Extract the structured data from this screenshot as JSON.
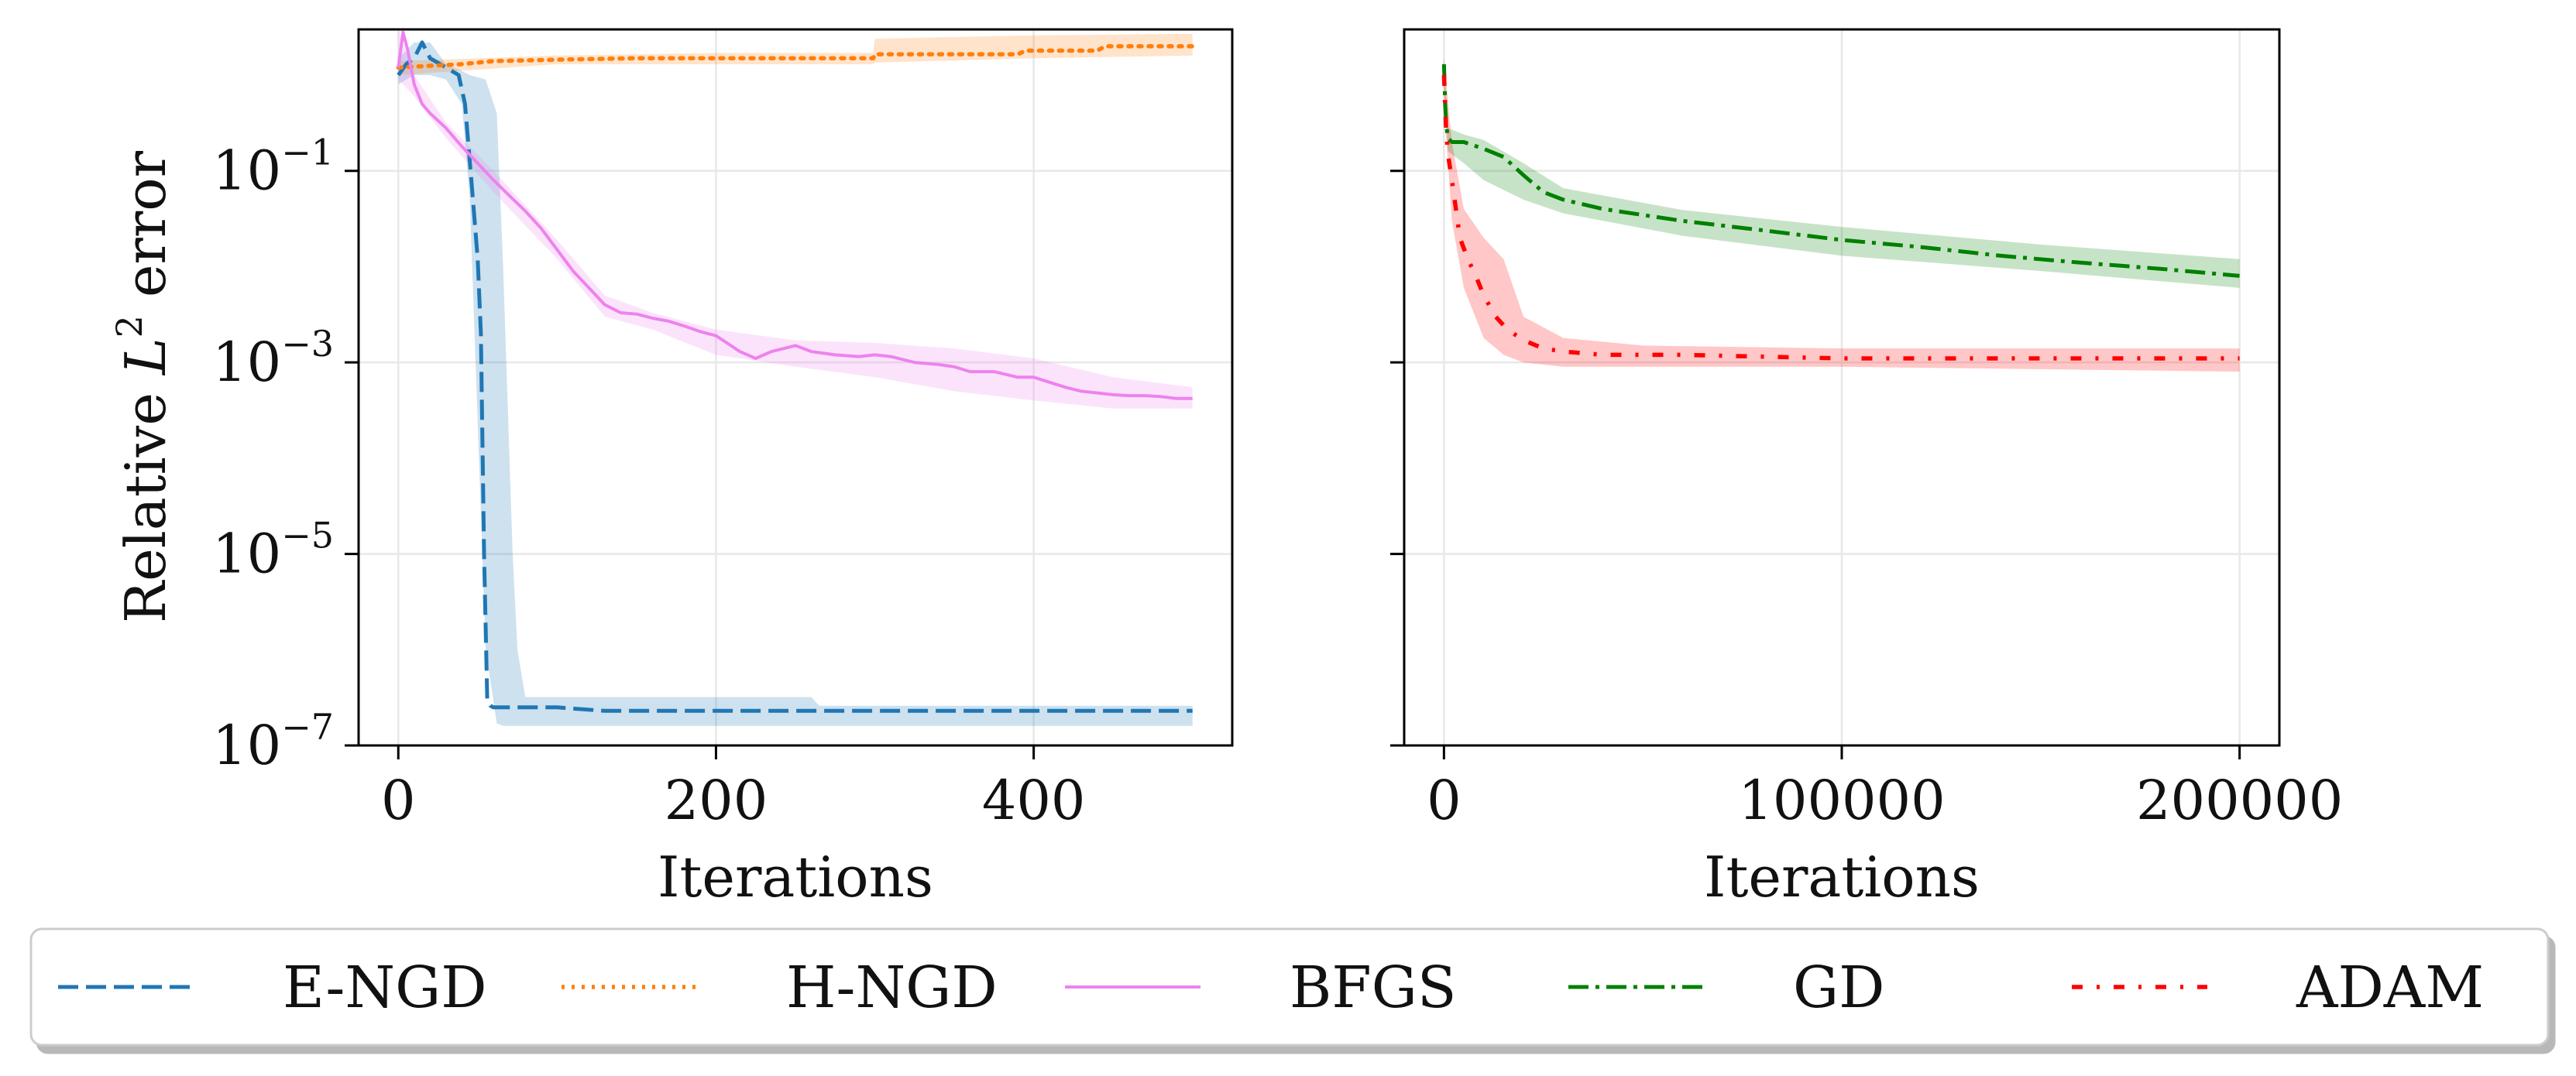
{
  "chart_data": [
    {
      "type": "line",
      "panel": "left",
      "title": "",
      "xlabel": "Iterations",
      "ylabel": "Relative L² error",
      "ylabel_parts": {
        "prefix": "Relative ",
        "var": "L",
        "sup": "2",
        "suffix": " error"
      },
      "yscale": "log",
      "xlim": [
        -25,
        525
      ],
      "ylim": [
        1e-07,
        3
      ],
      "grid": true,
      "xticks": [
        0,
        200,
        400
      ],
      "xtick_labels": [
        "0",
        "200",
        "400"
      ],
      "yticks": [
        1e-07,
        1e-05,
        0.001,
        0.1
      ],
      "ytick_labels": [
        {
          "base": "10",
          "exp": "−7"
        },
        {
          "base": "10",
          "exp": "−5"
        },
        {
          "base": "10",
          "exp": "−3"
        },
        {
          "base": "10",
          "exp": "−1"
        }
      ],
      "series": [
        {
          "name": "E-NGD",
          "color": "#1f77b4",
          "style": "dashed",
          "x": [
            0,
            5,
            10,
            15,
            20,
            30,
            38,
            42,
            46,
            50,
            52,
            54,
            56,
            58,
            60,
            80,
            100,
            130,
            200,
            300,
            400,
            500
          ],
          "y": [
            1.0,
            1.3,
            1.5,
            2.2,
            1.5,
            1.2,
            1.0,
            0.5,
            0.08,
            0.012,
            0.002,
            1e-05,
            3e-07,
            2.6e-07,
            2.5e-07,
            2.5e-07,
            2.5e-07,
            2.3e-07,
            2.3e-07,
            2.3e-07,
            2.3e-07,
            2.3e-07
          ],
          "band_x": [
            0,
            10,
            20,
            30,
            40,
            45,
            55,
            62,
            66,
            70,
            72,
            75,
            80,
            100,
            130,
            200,
            260,
            265,
            300,
            400,
            500
          ],
          "band_lo": [
            0.8,
            1.0,
            1.0,
            0.9,
            0.5,
            0.05,
            1e-06,
            1.7e-07,
            1.6e-07,
            1.6e-07,
            1.6e-07,
            1.6e-07,
            1.6e-07,
            1.6e-07,
            1.6e-07,
            1.6e-07,
            1.6e-07,
            1.6e-07,
            1.6e-07,
            1.6e-07,
            1.6e-07
          ],
          "band_hi": [
            1.5,
            2.2,
            2.2,
            1.3,
            1.1,
            1.0,
            0.9,
            0.4,
            0.01,
            0.0001,
            1e-05,
            1e-06,
            3.2e-07,
            3.2e-07,
            3.2e-07,
            3.2e-07,
            3.2e-07,
            2.6e-07,
            2.6e-07,
            2.6e-07,
            2.6e-07
          ]
        },
        {
          "name": "H-NGD",
          "color": "#ff7f0e",
          "style": "dotted",
          "x": [
            0,
            20,
            40,
            60,
            100,
            150,
            200,
            250,
            299,
            300,
            350,
            390,
            395,
            440,
            445,
            500
          ],
          "y": [
            1.2,
            1.25,
            1.3,
            1.4,
            1.45,
            1.5,
            1.5,
            1.5,
            1.5,
            1.65,
            1.65,
            1.65,
            1.8,
            1.8,
            2.0,
            2.0
          ],
          "band_x": [
            0,
            100,
            200,
            299,
            300,
            400,
            500
          ],
          "band_lo": [
            1.0,
            1.3,
            1.3,
            1.3,
            1.35,
            1.5,
            1.6
          ],
          "band_hi": [
            1.4,
            1.6,
            1.7,
            1.7,
            2.4,
            2.6,
            2.7
          ]
        },
        {
          "name": "BFGS",
          "color": "#ee82ee",
          "style": "solid",
          "x": [
            0,
            3,
            6,
            10,
            15,
            20,
            30,
            40,
            50,
            60,
            70,
            80,
            90,
            100,
            110,
            120,
            130,
            140,
            150,
            160,
            170,
            180,
            190,
            200,
            215,
            225,
            235,
            250,
            260,
            275,
            290,
            300,
            310,
            325,
            340,
            350,
            360,
            375,
            390,
            400,
            410,
            420,
            430,
            440,
            450,
            460,
            470,
            480,
            490,
            500
          ],
          "y": [
            1.2,
            2.8,
            1.8,
            0.8,
            0.5,
            0.4,
            0.28,
            0.18,
            0.12,
            0.08,
            0.055,
            0.038,
            0.025,
            0.015,
            0.009,
            0.006,
            0.004,
            0.0033,
            0.0032,
            0.0029,
            0.0027,
            0.0024,
            0.0021,
            0.0019,
            0.0013,
            0.0011,
            0.0013,
            0.0015,
            0.0013,
            0.0012,
            0.00115,
            0.0012,
            0.00115,
            0.001,
            0.00095,
            0.0009,
            0.0008,
            0.0008,
            0.0007,
            0.0007,
            0.00062,
            0.00055,
            0.0005,
            0.00048,
            0.00046,
            0.00045,
            0.00045,
            0.00044,
            0.00042,
            0.00042
          ],
          "band_x": [
            0,
            10,
            30,
            60,
            100,
            130,
            160,
            200,
            250,
            300,
            350,
            400,
            450,
            500
          ],
          "band_lo": [
            0.9,
            0.6,
            0.22,
            0.06,
            0.012,
            0.003,
            0.0022,
            0.0012,
            0.0009,
            0.0007,
            0.0005,
            0.0004,
            0.00033,
            0.00033
          ],
          "band_hi": [
            3.0,
            1.0,
            0.32,
            0.1,
            0.019,
            0.005,
            0.0033,
            0.0022,
            0.0017,
            0.0016,
            0.0014,
            0.0011,
            0.0007,
            0.00055
          ]
        }
      ]
    },
    {
      "type": "line",
      "panel": "right",
      "title": "",
      "xlabel": "Iterations",
      "ylabel": "",
      "yscale": "log",
      "xlim": [
        -10000,
        210000
      ],
      "ylim": [
        1e-07,
        3
      ],
      "grid": true,
      "xticks": [
        0,
        100000,
        200000
      ],
      "xtick_labels": [
        "0",
        "100000",
        "200000"
      ],
      "yticks": [
        1e-07,
        1e-05,
        0.001,
        0.1
      ],
      "series": [
        {
          "name": "GD",
          "color": "#008000",
          "style": "dashdot",
          "x": [
            0,
            300,
            600,
            1000,
            2000,
            5000,
            10000,
            15000,
            20000,
            25000,
            30000,
            40000,
            60000,
            80000,
            100000,
            120000,
            140000,
            160000,
            180000,
            200000
          ],
          "y": [
            1.3,
            0.5,
            0.3,
            0.22,
            0.2,
            0.2,
            0.17,
            0.14,
            0.09,
            0.06,
            0.05,
            0.04,
            0.03,
            0.024,
            0.019,
            0.016,
            0.013,
            0.011,
            0.0095,
            0.008
          ],
          "band_x": [
            0,
            1000,
            5000,
            10000,
            20000,
            30000,
            60000,
            100000,
            150000,
            200000
          ],
          "band_lo": [
            0.8,
            0.16,
            0.12,
            0.08,
            0.05,
            0.036,
            0.021,
            0.013,
            0.009,
            0.006
          ],
          "band_hi": [
            1.6,
            0.28,
            0.24,
            0.21,
            0.12,
            0.066,
            0.039,
            0.026,
            0.017,
            0.012
          ]
        },
        {
          "name": "ADAM",
          "color": "#ff0000",
          "style": "loosely-dashdotted",
          "x": [
            0,
            500,
            1000,
            2000,
            3000,
            4000,
            6000,
            8000,
            10000,
            13000,
            16000,
            20000,
            25000,
            30000,
            40000,
            60000,
            100000,
            140000,
            200000
          ],
          "y": [
            1.0,
            0.3,
            0.15,
            0.08,
            0.04,
            0.02,
            0.012,
            0.008,
            0.005,
            0.003,
            0.0022,
            0.0017,
            0.0014,
            0.0013,
            0.0012,
            0.0012,
            0.0011,
            0.0011,
            0.0011
          ],
          "band_x": [
            0,
            2000,
            5000,
            10000,
            15000,
            20000,
            30000,
            50000,
            100000,
            200000
          ],
          "band_lo": [
            0.5,
            0.03,
            0.006,
            0.0018,
            0.0012,
            0.001,
            0.0009,
            0.0009,
            0.0009,
            0.0008
          ],
          "band_hi": [
            1.5,
            0.2,
            0.04,
            0.02,
            0.012,
            0.003,
            0.0018,
            0.0015,
            0.0014,
            0.0014
          ]
        }
      ]
    }
  ],
  "legend": {
    "placement": "bottom",
    "items": [
      {
        "label": "E-NGD",
        "color": "#1f77b4",
        "style": "dashed"
      },
      {
        "label": "H-NGD",
        "color": "#ff7f0e",
        "style": "dotted"
      },
      {
        "label": "BFGS",
        "color": "#ee82ee",
        "style": "solid"
      },
      {
        "label": "GD",
        "color": "#008000",
        "style": "dashdot"
      },
      {
        "label": "ADAM",
        "color": "#ff0000",
        "style": "loosely-dashdotted"
      }
    ]
  }
}
